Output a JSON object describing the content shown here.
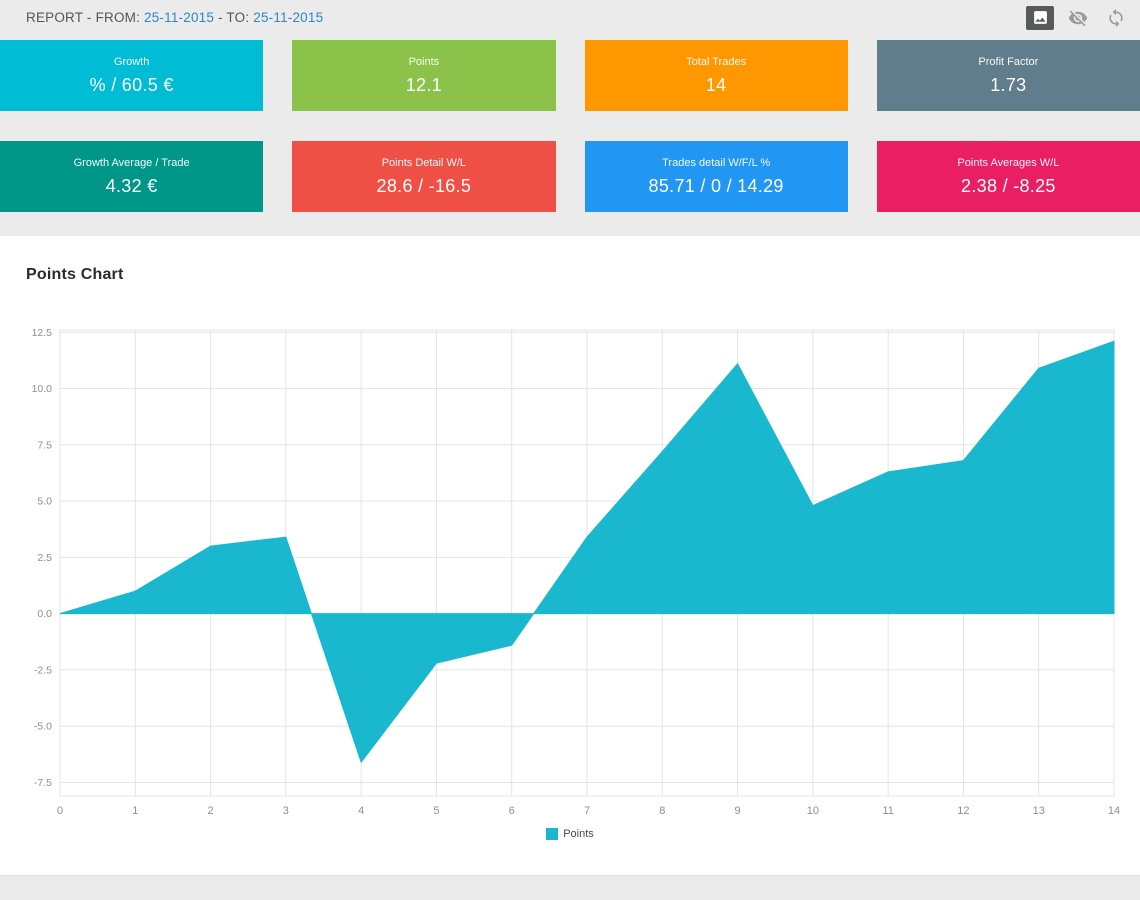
{
  "header": {
    "title_prefix": "REPORT - FROM:",
    "from_date": "25-11-2015",
    "separator": "- TO:",
    "to_date": "25-11-2015",
    "icons": [
      "image-icon",
      "eye-off-icon",
      "refresh-icon"
    ]
  },
  "cards": [
    {
      "label": "Growth",
      "value": "% / 60.5 €",
      "color": "#00bcd4"
    },
    {
      "label": "Points",
      "value": "12.1",
      "color": "#8bc34a"
    },
    {
      "label": "Total Trades",
      "value": "14",
      "color": "#ff9800"
    },
    {
      "label": "Profit Factor",
      "value": "1.73",
      "color": "#607d8b"
    },
    {
      "label": "Growth Average / Trade",
      "value": "4.32 €",
      "color": "#009688"
    },
    {
      "label": "Points Detail W/L",
      "value": "28.6 / -16.5",
      "color": "#ef5045"
    },
    {
      "label": "Trades detail W/F/L %",
      "value": "85.71 / 0 / 14.29",
      "color": "#2196f3"
    },
    {
      "label": "Points Averages W/L",
      "value": "2.38 / -8.25",
      "color": "#e91e63"
    }
  ],
  "chart": {
    "title": "Points Chart",
    "legend": "Points"
  },
  "chart_data": {
    "type": "area",
    "title": "Points Chart",
    "x": [
      0,
      1,
      2,
      3,
      4,
      5,
      6,
      7,
      8,
      9,
      10,
      11,
      12,
      13,
      14
    ],
    "series": [
      {
        "name": "Points",
        "values": [
          0,
          1.0,
          3.0,
          3.4,
          -6.6,
          -2.2,
          -1.4,
          3.4,
          7.2,
          11.1,
          4.8,
          6.3,
          6.8,
          10.9,
          12.1
        ]
      }
    ],
    "baseline": 0,
    "ylim": [
      -7.5,
      12.5
    ],
    "yticks": [
      -7.5,
      -5.0,
      -2.5,
      0.0,
      2.5,
      5.0,
      7.5,
      10.0,
      12.5
    ],
    "xticks": [
      0,
      1,
      2,
      3,
      4,
      5,
      6,
      7,
      8,
      9,
      10,
      11,
      12,
      13,
      14
    ],
    "color": "#1ab8ce",
    "grid": true,
    "legend_position": "bottom"
  }
}
